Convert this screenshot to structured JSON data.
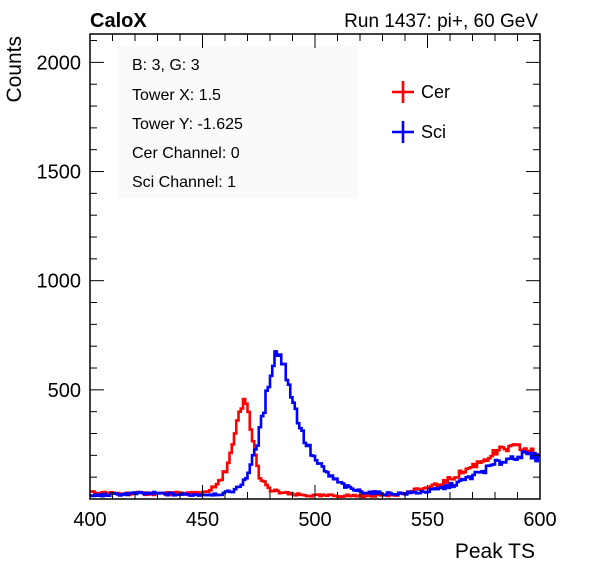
{
  "header": {
    "left": "CaloX",
    "right": "Run 1437: pi+, 60 GeV"
  },
  "info_box": {
    "lines": [
      "B: 3, G: 3",
      "Tower X: 1.5",
      "Tower Y: -1.625",
      "Cer Channel: 0",
      "Sci Channel: 1"
    ]
  },
  "chart_data": {
    "type": "line",
    "title": "",
    "xlabel": "Peak TS",
    "ylabel": "Counts",
    "xlim": [
      400,
      600
    ],
    "ylim": [
      0,
      2130
    ],
    "x_ticks": [
      400,
      450,
      500,
      550,
      600
    ],
    "y_ticks": [
      500,
      1000,
      1500,
      2000
    ],
    "grid": false,
    "legend_position": "top-right",
    "histogram_steps": true,
    "series": [
      {
        "name": "Cer",
        "color": "#ff0000",
        "points": [
          [
            400,
            30
          ],
          [
            410,
            25
          ],
          [
            420,
            25
          ],
          [
            430,
            25
          ],
          [
            440,
            25
          ],
          [
            450,
            30
          ],
          [
            455,
            50
          ],
          [
            458,
            80
          ],
          [
            461,
            150
          ],
          [
            464,
            260
          ],
          [
            466,
            370
          ],
          [
            468,
            430
          ],
          [
            469,
            445
          ],
          [
            470,
            420
          ],
          [
            472,
            300
          ],
          [
            474,
            160
          ],
          [
            476,
            90
          ],
          [
            480,
            40
          ],
          [
            490,
            20
          ],
          [
            500,
            15
          ],
          [
            510,
            15
          ],
          [
            520,
            15
          ],
          [
            530,
            18
          ],
          [
            540,
            25
          ],
          [
            545,
            40
          ],
          [
            550,
            50
          ],
          [
            555,
            65
          ],
          [
            560,
            90
          ],
          [
            565,
            120
          ],
          [
            570,
            150
          ],
          [
            575,
            180
          ],
          [
            580,
            210
          ],
          [
            585,
            230
          ],
          [
            590,
            235
          ],
          [
            595,
            220
          ],
          [
            600,
            200
          ]
        ]
      },
      {
        "name": "Sci",
        "color": "#0000ff",
        "points": [
          [
            400,
            15
          ],
          [
            410,
            20
          ],
          [
            420,
            25
          ],
          [
            430,
            25
          ],
          [
            440,
            20
          ],
          [
            450,
            20
          ],
          [
            460,
            25
          ],
          [
            466,
            50
          ],
          [
            470,
            110
          ],
          [
            473,
            200
          ],
          [
            476,
            330
          ],
          [
            479,
            500
          ],
          [
            481,
            620
          ],
          [
            483,
            680
          ],
          [
            485,
            650
          ],
          [
            488,
            550
          ],
          [
            491,
            420
          ],
          [
            495,
            280
          ],
          [
            500,
            180
          ],
          [
            505,
            120
          ],
          [
            510,
            80
          ],
          [
            515,
            50
          ],
          [
            520,
            35
          ],
          [
            530,
            25
          ],
          [
            540,
            25
          ],
          [
            550,
            35
          ],
          [
            555,
            45
          ],
          [
            560,
            60
          ],
          [
            565,
            80
          ],
          [
            570,
            105
          ],
          [
            575,
            130
          ],
          [
            580,
            160
          ],
          [
            585,
            180
          ],
          [
            590,
            200
          ],
          [
            595,
            200
          ],
          [
            600,
            185
          ]
        ]
      }
    ]
  }
}
